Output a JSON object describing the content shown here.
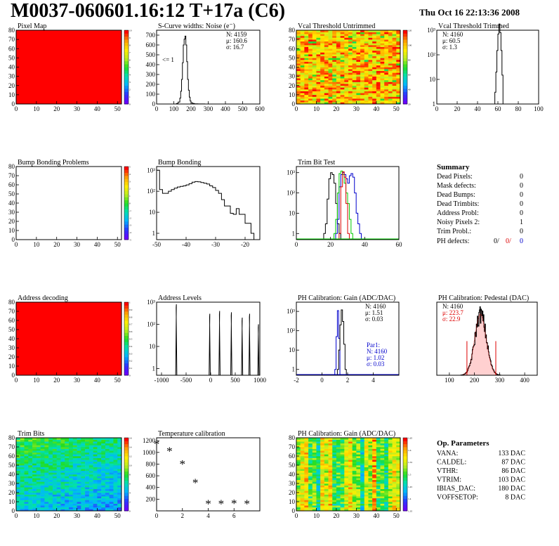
{
  "header": {
    "title": "M0037-060601.16:12 T+17a (C6)",
    "timestamp": "Thu Oct 16 22:13:36 2008"
  },
  "colors": {
    "red_full": "#ff0000",
    "hist_line": "#000000",
    "green_line": "#00cc00",
    "blue_line": "#0000cc",
    "red_line": "#dd0000",
    "red_text": "#dd0000",
    "blue_text": "#0000cc"
  },
  "summary": {
    "title": "Summary",
    "rows": [
      {
        "label": "Dead Pixels:",
        "value": "0"
      },
      {
        "label": "Mask defects:",
        "value": "0"
      },
      {
        "label": "Dead Bumps:",
        "value": "0"
      },
      {
        "label": "Dead Trimbits:",
        "value": "0"
      },
      {
        "label": "Address Probl:",
        "value": "0"
      },
      {
        "label": "Noisy Pixels 2:",
        "value": "1"
      },
      {
        "label": "Trim Probl.:",
        "value": "0"
      }
    ],
    "ph_defects": {
      "label": "PH defects:",
      "v1": "0/",
      "v2": "0/",
      "v3": "0"
    }
  },
  "op_params": {
    "title": "Op. Parameters",
    "rows": [
      {
        "label": "VANA:",
        "value": "133 DAC"
      },
      {
        "label": "CALDEL:",
        "value": "87 DAC"
      },
      {
        "label": "VTHR:",
        "value": "86 DAC"
      },
      {
        "label": "VTRIM:",
        "value": "103 DAC"
      },
      {
        "label": "IBIAS_DAC:",
        "value": "180 DAC"
      },
      {
        "label": "VOFFSETOP:",
        "value": "8 DAC"
      }
    ]
  },
  "chart_data": [
    {
      "id": "pixel-map",
      "type": "heatmap",
      "title": "Pixel Map",
      "xlim": [
        0,
        52
      ],
      "ylim": [
        0,
        80
      ],
      "xticks": [
        "0",
        "10",
        "20",
        "30",
        "40",
        "50"
      ],
      "yticks": [
        "0",
        "10",
        "20",
        "30",
        "40",
        "50",
        "60",
        "70",
        "80"
      ],
      "fill": "uniform",
      "value": 10,
      "palette_ticks": [
        "0",
        "1",
        "2",
        "3",
        "4",
        "5",
        "6",
        "7",
        "8",
        "9",
        "10"
      ]
    },
    {
      "id": "scurve-noise",
      "type": "line",
      "title": "S-Curve widths: Noise (e⁻)",
      "xlim": [
        0,
        600
      ],
      "ylim": [
        0,
        750
      ],
      "xticks": [
        "0",
        "100",
        "200",
        "300",
        "400",
        "500",
        "600"
      ],
      "yticks": [
        "0",
        "100",
        "200",
        "300",
        "400",
        "500",
        "600",
        "700"
      ],
      "annotation": "<= 1",
      "stats": [
        "N: 4159",
        "μ: 160.6",
        "σ: 16.7"
      ],
      "x": [
        100,
        115,
        125,
        135,
        140,
        145,
        150,
        155,
        160,
        165,
        170,
        175,
        180,
        185,
        190,
        195,
        200,
        210,
        220,
        240,
        260,
        280
      ],
      "values": [
        0,
        5,
        20,
        60,
        130,
        250,
        420,
        600,
        660,
        690,
        600,
        430,
        250,
        140,
        70,
        30,
        12,
        5,
        2,
        1,
        1,
        0
      ]
    },
    {
      "id": "vcal-untrimmed",
      "type": "heatmap",
      "title": "Vcal Threshold Untrimmed",
      "xlim": [
        0,
        52
      ],
      "ylim": [
        0,
        80
      ],
      "xticks": [
        "0",
        "10",
        "20",
        "30",
        "40",
        "50"
      ],
      "yticks": [
        "0",
        "10",
        "20",
        "30",
        "40",
        "50",
        "60",
        "70",
        "80"
      ],
      "fill": "noise-orange",
      "palette_ticks": [
        "20",
        "40",
        "60",
        "80",
        "100",
        "120"
      ]
    },
    {
      "id": "vcal-trimmed",
      "type": "line",
      "title": "Vcal Threshold Trimmed",
      "xlim": [
        0,
        100
      ],
      "ylim_log": [
        1,
        1000
      ],
      "xticks": [
        "0",
        "20",
        "40",
        "60",
        "80",
        "100"
      ],
      "yticks": [
        "1",
        "10",
        "10²",
        "10³"
      ],
      "stats": [
        "N: 4160",
        "μ: 60.5",
        "σ:  1.3"
      ],
      "x": [
        56,
        57,
        58,
        59,
        60,
        61,
        62,
        63,
        64,
        65
      ],
      "values": [
        1,
        3,
        20,
        150,
        700,
        1800,
        800,
        150,
        15,
        1
      ]
    },
    {
      "id": "bump-problems",
      "type": "heatmap",
      "title": "Bump Bonding Problems",
      "xlim": [
        0,
        52
      ],
      "ylim": [
        0,
        80
      ],
      "xticks": [
        "0",
        "10",
        "20",
        "30",
        "40",
        "50"
      ],
      "yticks": [
        "0",
        "10",
        "20",
        "30",
        "40",
        "50",
        "60",
        "70",
        "80"
      ],
      "fill": "empty",
      "palette_ticks": [
        "-5",
        "-4",
        "-3",
        "-2",
        "-1",
        "0",
        "1",
        "2",
        "3",
        "4",
        "5"
      ]
    },
    {
      "id": "bump-bonding",
      "type": "line",
      "title": "Bump Bonding",
      "xlim": [
        -50,
        -15
      ],
      "ylim_log": [
        0.5,
        1500
      ],
      "xticks": [
        "-50",
        "-40",
        "-30",
        "-20"
      ],
      "yticks": [
        "1",
        "10",
        "10²",
        "10³"
      ],
      "x": [
        -50,
        -49,
        -48,
        -47,
        -46,
        -45,
        -44,
        -43,
        -42,
        -41,
        -40,
        -39,
        -38,
        -37,
        -36,
        -35,
        -34,
        -33,
        -32,
        -31,
        -30,
        -29,
        -28,
        -27,
        -26,
        -25,
        -24,
        -23,
        -22,
        -21,
        -20,
        -19,
        -18,
        -17
      ],
      "values": [
        1000,
        120,
        80,
        80,
        100,
        120,
        140,
        160,
        170,
        180,
        200,
        230,
        270,
        290,
        280,
        260,
        240,
        220,
        180,
        150,
        110,
        80,
        40,
        20,
        20,
        9,
        8,
        15,
        8,
        8,
        3,
        3,
        1,
        0.5
      ]
    },
    {
      "id": "trim-bit-test",
      "type": "line",
      "title": "Trim Bit Test",
      "xlim": [
        0,
        60
      ],
      "ylim_log": [
        0.5,
        2000
      ],
      "xticks": [
        "0",
        "20",
        "40",
        "60"
      ],
      "yticks": [
        "1",
        "10",
        "10²",
        "10³"
      ],
      "series": [
        {
          "x": [
            16,
            17,
            18,
            19,
            20,
            21,
            22,
            23,
            24,
            25
          ],
          "values": [
            1,
            3,
            50,
            500,
            1000,
            800,
            300,
            30,
            3,
            1
          ],
          "color": "#000000"
        },
        {
          "x": [
            23,
            24,
            25,
            26,
            27,
            28,
            29,
            30,
            31,
            32,
            33,
            34,
            35,
            36,
            37
          ],
          "values": [
            1,
            5,
            200,
            800,
            1000,
            800,
            500,
            300,
            700,
            900,
            600,
            100,
            10,
            3,
            1
          ],
          "color": "#0000cc"
        },
        {
          "x": [
            22,
            23,
            24,
            25,
            26,
            27,
            28,
            29,
            30,
            31,
            32
          ],
          "values": [
            1,
            5,
            100,
            900,
            1200,
            800,
            300,
            100,
            30,
            5,
            1
          ],
          "color": "#00cc00"
        },
        {
          "x": [
            25,
            26,
            27,
            28,
            29,
            30
          ],
          "values": [
            1,
            200,
            1100,
            600,
            30,
            1
          ],
          "color": "#dd0000"
        }
      ]
    },
    {
      "id": "address-decoding",
      "type": "heatmap",
      "title": "Address decoding",
      "xlim": [
        0,
        52
      ],
      "ylim": [
        0,
        80
      ],
      "xticks": [
        "0",
        "10",
        "20",
        "30",
        "40",
        "50"
      ],
      "yticks": [
        "0",
        "10",
        "20",
        "30",
        "40",
        "50",
        "60",
        "70",
        "80"
      ],
      "fill": "uniform",
      "value": 1,
      "palette_ticks": [
        "0",
        "0.1",
        "0.2",
        "0.3",
        "0.4",
        "0.5",
        "0.6",
        "0.7",
        "0.8",
        "0.9",
        "1"
      ]
    },
    {
      "id": "address-levels",
      "type": "line",
      "title": "Address Levels",
      "xlim": [
        -1100,
        1000
      ],
      "ylim_log": [
        0.5,
        1000
      ],
      "xticks": [
        "-1000",
        "-500",
        "0",
        "500",
        "1000"
      ],
      "yticks": [
        "1",
        "10",
        "10²",
        "10³"
      ],
      "peaks": [
        {
          "x": -700,
          "h": 800
        },
        {
          "x": -20,
          "h": 300
        },
        {
          "x": 180,
          "h": 400
        },
        {
          "x": 420,
          "h": 350
        },
        {
          "x": 640,
          "h": 200
        },
        {
          "x": 790,
          "h": 300
        },
        {
          "x": 970,
          "h": 100
        }
      ]
    },
    {
      "id": "ph-gain",
      "type": "line",
      "title": "PH Calibration: Gain (ADC/DAC)",
      "xlim": [
        -2,
        6
      ],
      "ylim_log": [
        0.5,
        3000
      ],
      "xticks": [
        "-2",
        "0",
        "2",
        "4"
      ],
      "yticks": [
        "1",
        "10",
        "10²",
        "10³"
      ],
      "stats": [
        "N: 4160",
        "μ: 1.51",
        "σ: 0.03"
      ],
      "fit": [
        "Par1:",
        "N: 4160",
        "μ: 1.02",
        "σ: 0.03"
      ],
      "series": [
        {
          "x": [
            1.0,
            1.1,
            1.2,
            1.3
          ],
          "values": [
            1,
            50,
            1100,
            40
          ],
          "color": "#0000cc"
        },
        {
          "x": [
            1.2,
            1.3,
            1.4,
            1.5,
            1.6,
            1.7,
            1.8
          ],
          "values": [
            1,
            10,
            200,
            1200,
            300,
            20,
            1
          ],
          "color": "#000000"
        }
      ]
    },
    {
      "id": "ph-pedestal",
      "type": "line",
      "title": "PH Calibration: Pedestal (DAC)",
      "xlim": [
        50,
        450
      ],
      "ylim": [
        0,
        90
      ],
      "xticks": [
        "100",
        "200",
        "300",
        "400"
      ],
      "stats": [
        "N: 4160",
        "μ: 223.7",
        "σ: 22.9"
      ],
      "gauss": {
        "mu": 223.7,
        "sigma": 22.9,
        "peak": 75
      },
      "markers": [
        170,
        285
      ]
    },
    {
      "id": "trim-bits",
      "type": "heatmap",
      "title": "Trim Bits",
      "xlim": [
        0,
        52
      ],
      "ylim": [
        0,
        80
      ],
      "xticks": [
        "0",
        "10",
        "20",
        "30",
        "40",
        "50"
      ],
      "yticks": [
        "0",
        "10",
        "20",
        "30",
        "40",
        "50",
        "60",
        "70",
        "80"
      ],
      "fill": "trim",
      "palette_ticks": [
        "0",
        "2",
        "4",
        "6",
        "8",
        "10",
        "12",
        "14",
        "16"
      ]
    },
    {
      "id": "temperature-calibration",
      "type": "scatter",
      "title": "Temperature calibration",
      "xlim": [
        0,
        8
      ],
      "ylim": [
        0,
        1250
      ],
      "xticks": [
        "0",
        "2",
        "4",
        "6"
      ],
      "yticks": [
        "200",
        "400",
        "600",
        "800",
        "1000",
        "1200"
      ],
      "x": [
        0,
        1,
        2,
        3,
        4,
        5,
        6,
        7
      ],
      "values": [
        1160,
        1040,
        820,
        500,
        140,
        140,
        145,
        140
      ]
    },
    {
      "id": "ph-gain-map",
      "type": "heatmap",
      "title": "PH Calibration: Gain (ADC/DAC)",
      "xlim": [
        0,
        52
      ],
      "ylim": [
        0,
        80
      ],
      "xticks": [
        "0",
        "10",
        "20",
        "30",
        "40",
        "50"
      ],
      "yticks": [
        "0",
        "10",
        "20",
        "30",
        "40",
        "50",
        "60",
        "70",
        "80"
      ],
      "fill": "stripes",
      "palette_ticks": [
        "1.35",
        "1.4",
        "1.45",
        "1.5",
        "1.55",
        "1.6",
        "1.65"
      ]
    }
  ]
}
